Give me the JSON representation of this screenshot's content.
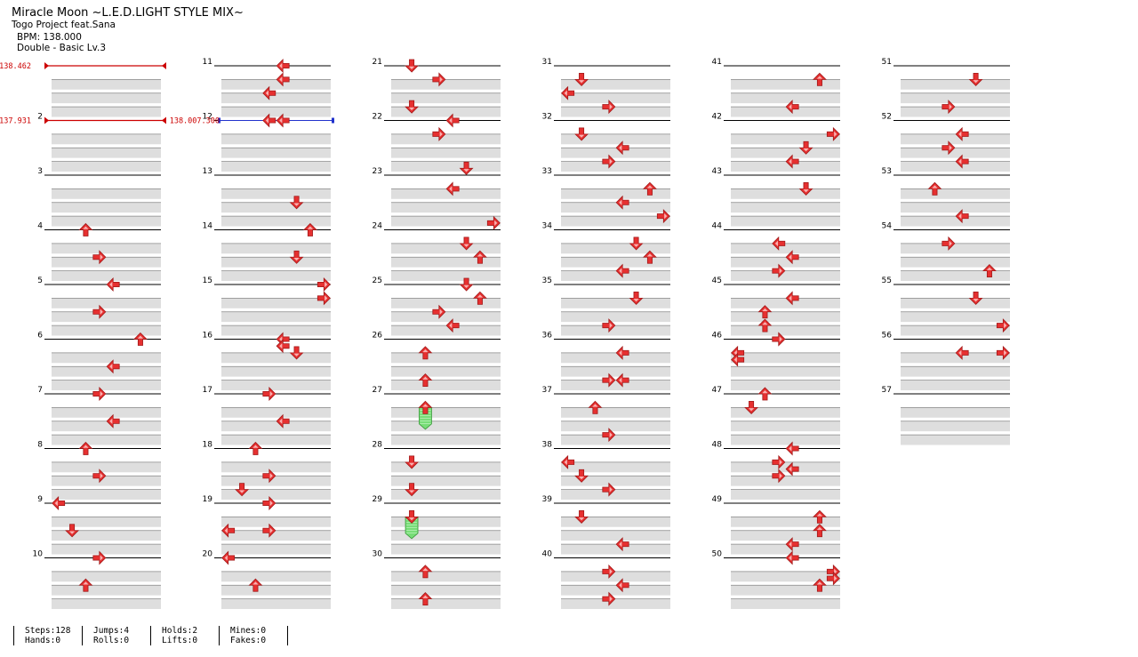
{
  "song": {
    "title": "Miracle Moon ~L.E.D.LIGHT STYLE MIX~",
    "artist": "Togo Project feat.Sana",
    "bpm": "BPM: 138.000",
    "chart": "Double - Basic Lv.3"
  },
  "measures": [
    {
      "n": "",
      "arrows": []
    },
    {
      "n": "2",
      "arrows": []
    },
    {
      "n": "3",
      "arrows": []
    },
    {
      "n": "4",
      "arrows": [
        [
          0,
          "u",
          2.5
        ],
        [
          2,
          "r",
          3.5
        ]
      ]
    },
    {
      "n": "5",
      "arrows": [
        [
          0,
          "l",
          4.5
        ],
        [
          2,
          "r",
          3.5
        ]
      ]
    },
    {
      "n": "6",
      "arrows": [
        [
          0,
          "u",
          6.5
        ],
        [
          2,
          "l",
          4.5
        ]
      ]
    },
    {
      "n": "7",
      "arrows": [
        [
          0,
          "r",
          3.5
        ],
        [
          2,
          "l",
          4.5
        ]
      ]
    },
    {
      "n": "8",
      "arrows": [
        [
          0,
          "u",
          2.5
        ],
        [
          2,
          "r",
          3.5
        ]
      ]
    },
    {
      "n": "9",
      "arrows": [
        [
          0,
          "l",
          0.5
        ],
        [
          2,
          "d",
          1.5
        ]
      ]
    },
    {
      "n": "10",
      "arrows": [
        [
          0,
          "r",
          3.5
        ],
        [
          2,
          "u",
          2.5
        ]
      ]
    },
    {
      "n": "11",
      "arrows": [
        [
          0,
          "l",
          4.5
        ],
        [
          1,
          "l",
          4.5
        ],
        [
          2,
          "l",
          3.5
        ]
      ]
    },
    {
      "n": "12",
      "arrows": [
        [
          0,
          "l",
          3.5
        ],
        [
          0,
          "l",
          4.5
        ]
      ]
    },
    {
      "n": "13",
      "arrows": [
        [
          2,
          "d",
          5.5
        ]
      ]
    },
    {
      "n": "14",
      "arrows": [
        [
          0,
          "u",
          6.5
        ],
        [
          2,
          "d",
          5.5
        ]
      ]
    },
    {
      "n": "15",
      "arrows": [
        [
          0,
          "r",
          7.5
        ],
        [
          1,
          "r",
          7.5
        ]
      ]
    },
    {
      "n": "16",
      "arrows": [
        [
          0,
          "l",
          4.5
        ],
        [
          0.5,
          "l",
          4.5
        ],
        [
          1,
          "d",
          5.5
        ]
      ]
    },
    {
      "n": "17",
      "arrows": [
        [
          0,
          "r",
          3.5
        ],
        [
          2,
          "l",
          4.5
        ]
      ]
    },
    {
      "n": "18",
      "arrows": [
        [
          0,
          "u",
          2.5
        ],
        [
          2,
          "r",
          3.5
        ],
        [
          3,
          "d",
          1.5
        ]
      ]
    },
    {
      "n": "19",
      "arrows": [
        [
          0,
          "r",
          3.5
        ],
        [
          2,
          "l",
          0.5
        ],
        [
          2,
          "r",
          3.5
        ]
      ]
    },
    {
      "n": "20",
      "arrows": [
        [
          0,
          "l",
          0.5
        ],
        [
          2,
          "u",
          2.5
        ]
      ]
    },
    {
      "n": "21",
      "arrows": [
        [
          0,
          "d",
          1.5
        ],
        [
          1,
          "r",
          3.5
        ],
        [
          3,
          "d",
          1.5
        ]
      ]
    },
    {
      "n": "22",
      "arrows": [
        [
          0,
          "l",
          4.5
        ],
        [
          1,
          "r",
          3.5
        ]
      ]
    },
    {
      "n": "23",
      "arrows": [
        [
          -0.5,
          "d",
          5.5
        ],
        [
          1,
          "l",
          4.5
        ]
      ]
    },
    {
      "n": "24",
      "arrows": [
        [
          -0.5,
          "r",
          7.5
        ],
        [
          1,
          "d",
          5.5
        ],
        [
          2,
          "u",
          6.5
        ]
      ]
    },
    {
      "n": "25",
      "arrows": [
        [
          0,
          "d",
          5.5
        ],
        [
          1,
          "u",
          6.5
        ],
        [
          2,
          "r",
          3.5
        ],
        [
          3,
          "l",
          4.5
        ]
      ]
    },
    {
      "n": "26",
      "arrows": [
        [
          1,
          "u",
          2.5
        ],
        [
          3,
          "u",
          2.5
        ]
      ]
    },
    {
      "n": "27",
      "arrows": [
        [
          1,
          "u",
          2.5
        ]
      ]
    },
    {
      "n": "28",
      "arrows": [
        [
          1,
          "d",
          1.5
        ],
        [
          3,
          "d",
          1.5
        ]
      ]
    },
    {
      "n": "29",
      "arrows": [
        [
          1,
          "d",
          1.5
        ]
      ]
    },
    {
      "n": "30",
      "arrows": [
        [
          1,
          "u",
          2.5
        ],
        [
          3,
          "u",
          2.5
        ]
      ]
    },
    {
      "n": "31",
      "arrows": [
        [
          1,
          "d",
          1.5
        ],
        [
          2,
          "l",
          0.5
        ],
        [
          3,
          "r",
          3.5
        ]
      ]
    },
    {
      "n": "32",
      "arrows": [
        [
          1,
          "d",
          1.5
        ],
        [
          2,
          "l",
          4.5
        ],
        [
          3,
          "r",
          3.5
        ]
      ]
    },
    {
      "n": "33",
      "arrows": [
        [
          1,
          "u",
          6.5
        ],
        [
          2,
          "l",
          4.5
        ],
        [
          3,
          "r",
          7.5
        ]
      ]
    },
    {
      "n": "34",
      "arrows": [
        [
          1,
          "d",
          5.5
        ],
        [
          2,
          "u",
          6.5
        ],
        [
          3,
          "l",
          4.5
        ]
      ]
    },
    {
      "n": "35",
      "arrows": [
        [
          1,
          "d",
          5.5
        ],
        [
          3,
          "r",
          3.5
        ]
      ]
    },
    {
      "n": "36",
      "arrows": [
        [
          1,
          "l",
          4.5
        ],
        [
          3,
          "r",
          3.5
        ],
        [
          3,
          "l",
          4.5
        ]
      ]
    },
    {
      "n": "37",
      "arrows": [
        [
          1,
          "u",
          2.5
        ],
        [
          3,
          "r",
          3.5
        ]
      ]
    },
    {
      "n": "38",
      "arrows": [
        [
          1,
          "l",
          0.5
        ],
        [
          2,
          "d",
          1.5
        ],
        [
          3,
          "r",
          3.5
        ]
      ]
    },
    {
      "n": "39",
      "arrows": [
        [
          1,
          "d",
          1.5
        ],
        [
          3,
          "l",
          4.5
        ]
      ]
    },
    {
      "n": "40",
      "arrows": [
        [
          1,
          "r",
          3.5
        ],
        [
          2,
          "l",
          4.5
        ],
        [
          3,
          "r",
          3.5
        ]
      ]
    },
    {
      "n": "41",
      "arrows": [
        [
          1,
          "u",
          6.5
        ],
        [
          3,
          "l",
          4.5
        ]
      ]
    },
    {
      "n": "42",
      "arrows": [
        [
          1,
          "r",
          7.5
        ],
        [
          2,
          "d",
          5.5
        ],
        [
          3,
          "l",
          4.5
        ]
      ]
    },
    {
      "n": "43",
      "arrows": [
        [
          1,
          "d",
          5.5
        ]
      ]
    },
    {
      "n": "44",
      "arrows": [
        [
          1,
          "l",
          3.5
        ],
        [
          2,
          "l",
          4.5
        ],
        [
          3,
          "r",
          3.5
        ]
      ]
    },
    {
      "n": "45",
      "arrows": [
        [
          1,
          "l",
          4.5
        ],
        [
          2,
          "u",
          2.5
        ],
        [
          3,
          "u",
          2.5
        ]
      ]
    },
    {
      "n": "46",
      "arrows": [
        [
          0,
          "r",
          3.5
        ],
        [
          0,
          "r",
          3.5
        ],
        [
          1,
          "l",
          0.5
        ],
        [
          1.5,
          "l",
          0.5
        ]
      ]
    },
    {
      "n": "47",
      "arrows": [
        [
          0,
          "u",
          2.5
        ],
        [
          1,
          "d",
          1.5
        ]
      ]
    },
    {
      "n": "48",
      "arrows": [
        [
          0,
          "l",
          4.5
        ],
        [
          1,
          "r",
          3.5
        ],
        [
          1.5,
          "l",
          4.5
        ],
        [
          2,
          "r",
          3.5
        ]
      ]
    },
    {
      "n": "49",
      "arrows": [
        [
          1,
          "u",
          6.5
        ],
        [
          2,
          "u",
          6.5
        ],
        [
          3,
          "l",
          4.5
        ]
      ]
    },
    {
      "n": "50",
      "arrows": [
        [
          0,
          "l",
          4.5
        ],
        [
          1,
          "r",
          7.5
        ],
        [
          1.5,
          "r",
          7.5
        ],
        [
          2,
          "u",
          6.5
        ]
      ]
    },
    {
      "n": "51",
      "arrows": [
        [
          1,
          "d",
          5.5
        ],
        [
          3,
          "r",
          3.5
        ]
      ]
    },
    {
      "n": "52",
      "arrows": [
        [
          1,
          "l",
          4.5
        ],
        [
          2,
          "r",
          3.5
        ],
        [
          3,
          "l",
          4.5
        ]
      ]
    },
    {
      "n": "53",
      "arrows": [
        [
          1,
          "u",
          2.5
        ],
        [
          3,
          "l",
          4.5
        ]
      ]
    },
    {
      "n": "54",
      "arrows": [
        [
          1,
          "r",
          3.5
        ],
        [
          3,
          "u",
          6.5
        ]
      ]
    },
    {
      "n": "55",
      "arrows": [
        [
          1,
          "d",
          5.5
        ],
        [
          3,
          "r",
          7.5
        ]
      ]
    },
    {
      "n": "56",
      "arrows": [
        [
          1,
          "l",
          4.5
        ],
        [
          1,
          "r",
          7.5
        ]
      ]
    },
    {
      "n": "57",
      "arrows": []
    }
  ],
  "holds": [
    {
      "measure": 27,
      "beat": 1,
      "length": 1.2,
      "lane": 2.5
    },
    {
      "measure": 29,
      "beat": 1,
      "length": 1.2,
      "lane": 1.5
    }
  ],
  "bpm_markers": [
    {
      "measure": 1,
      "label": "138.462"
    },
    {
      "measure": 2,
      "label": "137.931"
    }
  ],
  "changes": [
    {
      "measure": 12,
      "label": "138.007.300"
    }
  ],
  "stats": [
    {
      "line1": "Steps:128",
      "line2": "Hands:0"
    },
    {
      "line1": "Jumps:4",
      "line2": "Rolls:0"
    },
    {
      "line1": "Holds:2",
      "line2": "Lifts:0"
    },
    {
      "line1": "Mines:0",
      "line2": "Fakes:0"
    }
  ],
  "colors": {
    "arrow": "#e63030",
    "hold": "#77dd77",
    "bpm": "#cc0000",
    "change": "#2233cc",
    "band": "#dedede"
  }
}
